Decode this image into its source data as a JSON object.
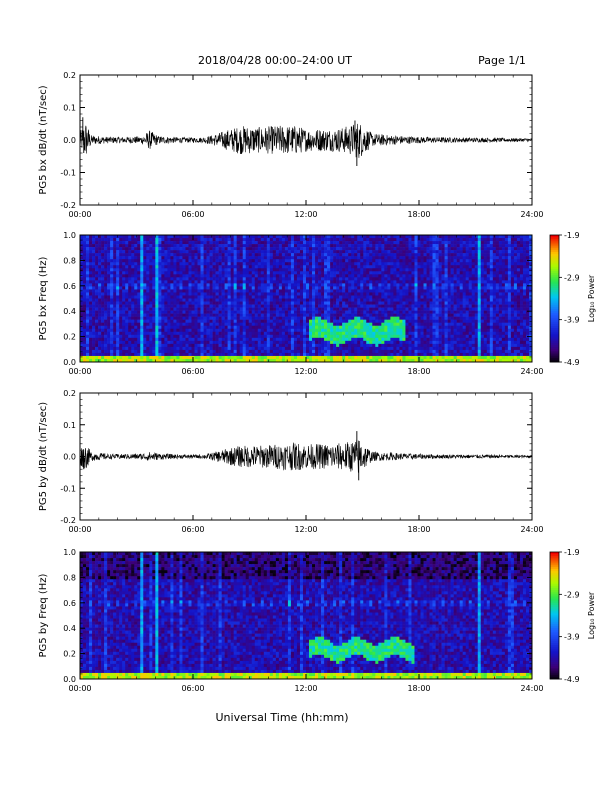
{
  "header": {
    "title": "2018/04/28  00:00–24:00 UT",
    "page": "Page 1/1"
  },
  "x_axis_title": "Universal Time (hh:mm)",
  "chart_data": [
    {
      "type": "line",
      "ylabel": "PG5 bx dB/dt (nT/sec)",
      "ylim": [
        -0.2,
        0.2
      ],
      "yticks": [
        "0.2",
        "0.1",
        "0.0",
        "-0.1",
        "-0.2"
      ],
      "xlim": [
        0,
        24
      ],
      "xticks": [
        "00:00",
        "06:00",
        "12:00",
        "18:00",
        "24:00"
      ],
      "envelope": {
        "x_hours": [
          0,
          0.3,
          0.6,
          1.5,
          2.5,
          3.3,
          3.7,
          4.2,
          5.5,
          6.5,
          7.0,
          7.5,
          8.0,
          8.6,
          9.5,
          10.5,
          11.5,
          12.0,
          13.0,
          13.5,
          14.0,
          14.5,
          14.8,
          15.5,
          16.5,
          18.0,
          19.5,
          21.0,
          22.5,
          24.0
        ],
        "amplitude": [
          0.025,
          0.06,
          0.015,
          0.01,
          0.01,
          0.012,
          0.03,
          0.012,
          0.008,
          0.008,
          0.015,
          0.025,
          0.035,
          0.045,
          0.04,
          0.045,
          0.045,
          0.035,
          0.035,
          0.035,
          0.04,
          0.05,
          0.06,
          0.02,
          0.015,
          0.01,
          0.008,
          0.007,
          0.006,
          0.005
        ]
      },
      "spikes": [
        {
          "x_hours": 0.15,
          "y": 0.07
        },
        {
          "x_hours": 0.2,
          "y": -0.04
        },
        {
          "x_hours": 14.7,
          "y": -0.08
        },
        {
          "x_hours": 14.6,
          "y": 0.06
        }
      ]
    },
    {
      "type": "heatmap",
      "ylabel": "PG5 bx Freq (Hz)",
      "ylim": [
        0.0,
        1.0
      ],
      "yticks": [
        "1.0",
        "0.8",
        "0.6",
        "0.4",
        "0.2",
        "0.0"
      ],
      "xlim": [
        0,
        24
      ],
      "xticks": [
        "00:00",
        "06:00",
        "12:00",
        "18:00",
        "24:00"
      ],
      "colorbar": {
        "label": "Log₁₀ Power",
        "range": [
          -4.9,
          -1.9
        ],
        "ticks": [
          "-1.9",
          "-2.9",
          "-3.9",
          "-4.9"
        ]
      },
      "features": [
        {
          "kind": "band",
          "x_from_hours": 12.2,
          "x_to_hours": 17.3,
          "f_low": 0.16,
          "f_high": 0.32,
          "level": -3.1
        },
        {
          "kind": "lowfreq",
          "f_high": 0.05,
          "level": -2.6
        },
        {
          "kind": "vertical_streak",
          "x_hours": 4.1,
          "level": -3.4
        },
        {
          "kind": "vertical_streak",
          "x_hours": 3.3,
          "level": -3.5
        },
        {
          "kind": "vertical_streak",
          "x_hours": 21.2,
          "level": -3.5
        }
      ]
    },
    {
      "type": "line",
      "ylabel": "PG5 by dB/dt (nT/sec)",
      "ylim": [
        -0.2,
        0.2
      ],
      "yticks": [
        "0.2",
        "0.1",
        "0.0",
        "-0.1",
        "-0.2"
      ],
      "xlim": [
        0,
        24
      ],
      "xticks": [
        "00:00",
        "06:00",
        "12:00",
        "18:00",
        "24:00"
      ],
      "envelope": {
        "x_hours": [
          0,
          0.3,
          0.6,
          1.5,
          2.5,
          3.3,
          3.7,
          4.2,
          5.5,
          6.5,
          7.0,
          7.5,
          8.0,
          8.6,
          9.5,
          10.5,
          11.5,
          12.0,
          13.0,
          13.5,
          14.0,
          14.5,
          14.8,
          15.5,
          16.5,
          18.0,
          19.5,
          21.0,
          22.5,
          24.0
        ],
        "amplitude": [
          0.03,
          0.04,
          0.015,
          0.008,
          0.008,
          0.01,
          0.015,
          0.01,
          0.006,
          0.006,
          0.012,
          0.02,
          0.028,
          0.035,
          0.035,
          0.04,
          0.045,
          0.04,
          0.04,
          0.04,
          0.045,
          0.05,
          0.06,
          0.015,
          0.012,
          0.008,
          0.006,
          0.006,
          0.005,
          0.004
        ]
      },
      "spikes": [
        {
          "x_hours": 0.2,
          "y": -0.04
        },
        {
          "x_hours": 14.7,
          "y": 0.08
        },
        {
          "x_hours": 14.8,
          "y": -0.075
        }
      ]
    },
    {
      "type": "heatmap",
      "ylabel": "PG5 by Freq (Hz)",
      "ylim": [
        0.0,
        1.0
      ],
      "yticks": [
        "1.0",
        "0.8",
        "0.6",
        "0.4",
        "0.2",
        "0.0"
      ],
      "xlim": [
        0,
        24
      ],
      "xticks": [
        "00:00",
        "06:00",
        "12:00",
        "18:00",
        "24:00"
      ],
      "colorbar": {
        "label": "Log₁₀ Power",
        "range": [
          -4.9,
          -1.9
        ],
        "ticks": [
          "-1.9",
          "-2.9",
          "-3.9",
          "-4.9"
        ]
      },
      "features": [
        {
          "kind": "band",
          "x_from_hours": 12.2,
          "x_to_hours": 17.8,
          "f_low": 0.16,
          "f_high": 0.3,
          "level": -3.1
        },
        {
          "kind": "lowfreq",
          "f_high": 0.05,
          "level": -2.6
        },
        {
          "kind": "vertical_streak",
          "x_hours": 4.1,
          "level": -3.4
        },
        {
          "kind": "vertical_streak",
          "x_hours": 3.3,
          "level": -3.5
        },
        {
          "kind": "vertical_streak",
          "x_hours": 21.2,
          "level": -3.5
        }
      ]
    }
  ],
  "colors": {
    "trace": "#000000",
    "axis": "#000000",
    "background": "#ffffff"
  }
}
